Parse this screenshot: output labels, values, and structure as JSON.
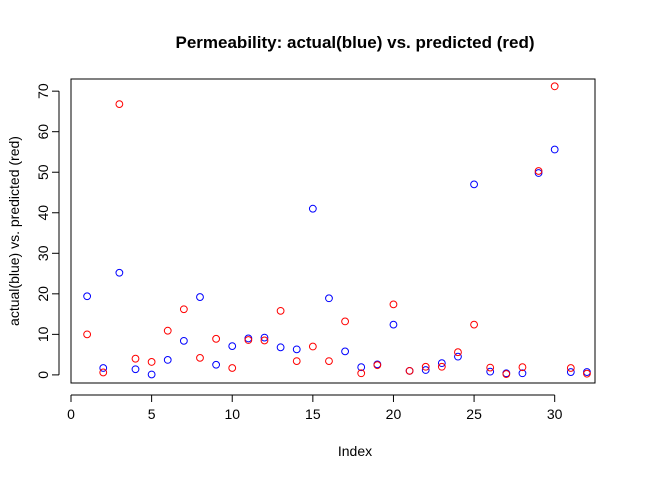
{
  "chart_data": {
    "type": "scatter",
    "title": "Permeability: actual(blue) vs. predicted (red)",
    "xlabel": "Index",
    "ylabel": "actual(blue) vs. predicted (red)",
    "xlim": [
      0,
      32.5
    ],
    "ylim": [
      -2,
      73
    ],
    "x_ticks": [
      0,
      5,
      10,
      15,
      20,
      25,
      30
    ],
    "y_ticks": [
      0,
      10,
      20,
      30,
      40,
      50,
      60,
      70
    ],
    "grid": false,
    "colors": {
      "actual": "#0000ff",
      "predicted": "#ff0000"
    },
    "series": [
      {
        "color": "#0000ff",
        "x": [
          1,
          2,
          3,
          4,
          5,
          6,
          7,
          8,
          9,
          10,
          11,
          12,
          13,
          14,
          15,
          16,
          17,
          18,
          19,
          20,
          21,
          22,
          23,
          24,
          25,
          26,
          27,
          28,
          29,
          30,
          31,
          32
        ],
        "y": [
          19.4,
          1.7,
          25.2,
          1.4,
          0.1,
          3.7,
          8.4,
          19.2,
          2.5,
          7.1,
          9.0,
          9.2,
          6.8,
          6.3,
          41.0,
          18.9,
          5.8,
          1.9,
          2.6,
          12.4,
          1.0,
          1.2,
          2.9,
          4.5,
          47.0,
          0.8,
          0.4,
          0.4,
          49.8,
          55.6,
          0.7,
          0.7
        ]
      },
      {
        "color": "#ff0000",
        "x": [
          1,
          2,
          3,
          4,
          5,
          6,
          7,
          8,
          9,
          10,
          11,
          12,
          13,
          14,
          15,
          16,
          17,
          18,
          19,
          20,
          21,
          22,
          23,
          24,
          25,
          26,
          27,
          28,
          29,
          30,
          31,
          32
        ],
        "y": [
          10.0,
          0.6,
          66.8,
          4.0,
          3.2,
          10.9,
          16.2,
          4.2,
          8.9,
          1.7,
          8.6,
          8.5,
          15.8,
          3.4,
          7.0,
          3.4,
          13.2,
          0.4,
          2.4,
          17.4,
          1.0,
          2.0,
          2.0,
          5.6,
          12.4,
          1.8,
          0.2,
          1.9,
          50.3,
          71.2,
          1.7,
          0.3
        ]
      }
    ]
  }
}
